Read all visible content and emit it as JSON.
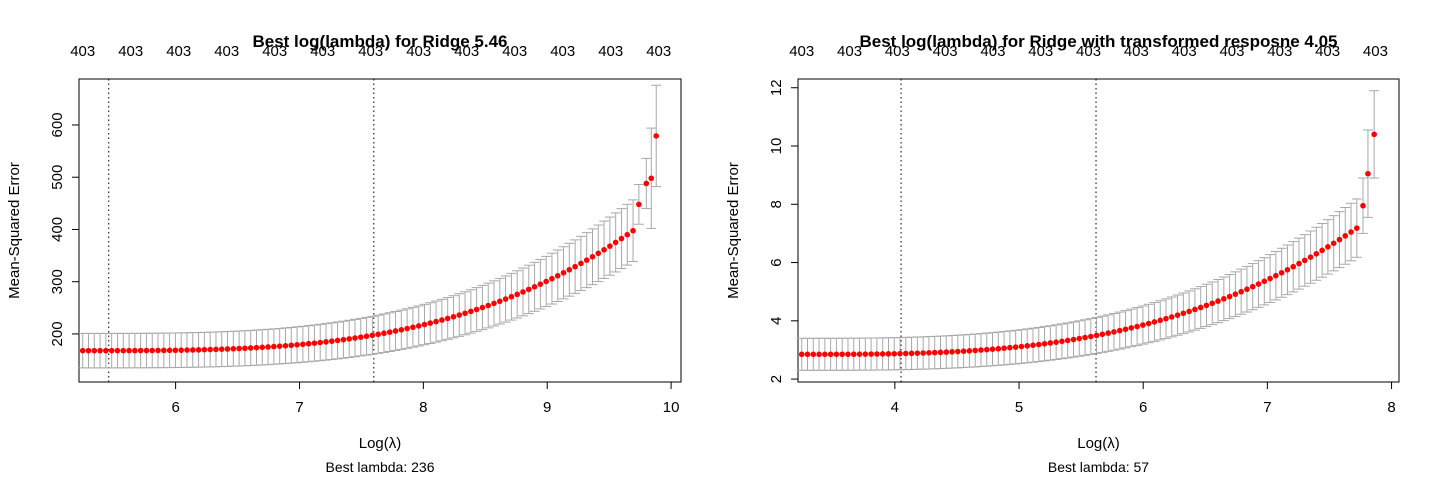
{
  "chart_data": [
    {
      "type": "scatter",
      "title": "Best log(lambda) for Ridge 5.46",
      "xlabel": "Log(λ)",
      "ylabel": "Mean-Squared Error",
      "sub": "Best lambda: 236",
      "xlim": [
        5.22,
        10.08
      ],
      "ylim": [
        108,
        688
      ],
      "xticks": [
        6,
        7,
        8,
        9,
        10
      ],
      "yticks": [
        200,
        300,
        400,
        500,
        600
      ],
      "top_labels": [
        "403",
        "403",
        "403",
        "403",
        "403",
        "403",
        "403",
        "403",
        "403",
        "403",
        "403",
        "403",
        "403"
      ],
      "top_xlim": [
        5.25,
        9.9
      ],
      "vlines": [
        5.46,
        7.6
      ],
      "series": [
        {
          "x_start": 5.25,
          "x_end": 9.88,
          "n": 100,
          "y_base": 168,
          "y_end": 430,
          "power": 3.2,
          "cv_std": 33,
          "tail": [
            [
              9.74,
              448,
              38
            ],
            [
              9.8,
              488,
              48
            ],
            [
              9.84,
              498,
              96
            ],
            [
              9.88,
              579,
              97
            ]
          ]
        }
      ],
      "colors": {
        "point": "#ff0000",
        "bar": "#a8a8a8",
        "axis": "#000000",
        "vline": "#000000"
      }
    },
    {
      "type": "scatter",
      "title": "Best log(lambda) for Ridge with transformed resposne 4.05",
      "xlabel": "Log(λ)",
      "ylabel": "Mean-Squared Error",
      "sub": "Best lambda: 57",
      "xlim": [
        3.22,
        8.06
      ],
      "ylim": [
        1.9,
        12.3
      ],
      "xticks": [
        4,
        5,
        6,
        7,
        8
      ],
      "yticks": [
        2,
        4,
        6,
        8,
        10,
        12
      ],
      "top_labels": [
        "403",
        "403",
        "403",
        "403",
        "403",
        "403",
        "403",
        "403",
        "403",
        "403",
        "403",
        "403",
        "403"
      ],
      "top_xlim": [
        3.25,
        7.87
      ],
      "vlines": [
        4.05,
        5.62
      ],
      "series": [
        {
          "x_start": 3.25,
          "x_end": 7.86,
          "n": 100,
          "y_base": 2.85,
          "y_end": 7.6,
          "power": 3.0,
          "cv_std": 0.55,
          "tail": [
            [
              7.77,
              7.95,
              0.95
            ],
            [
              7.81,
              9.05,
              1.5
            ],
            [
              7.86,
              10.4,
              1.5
            ]
          ]
        }
      ],
      "colors": {
        "point": "#ff0000",
        "bar": "#a8a8a8",
        "axis": "#000000",
        "vline": "#000000"
      }
    }
  ]
}
